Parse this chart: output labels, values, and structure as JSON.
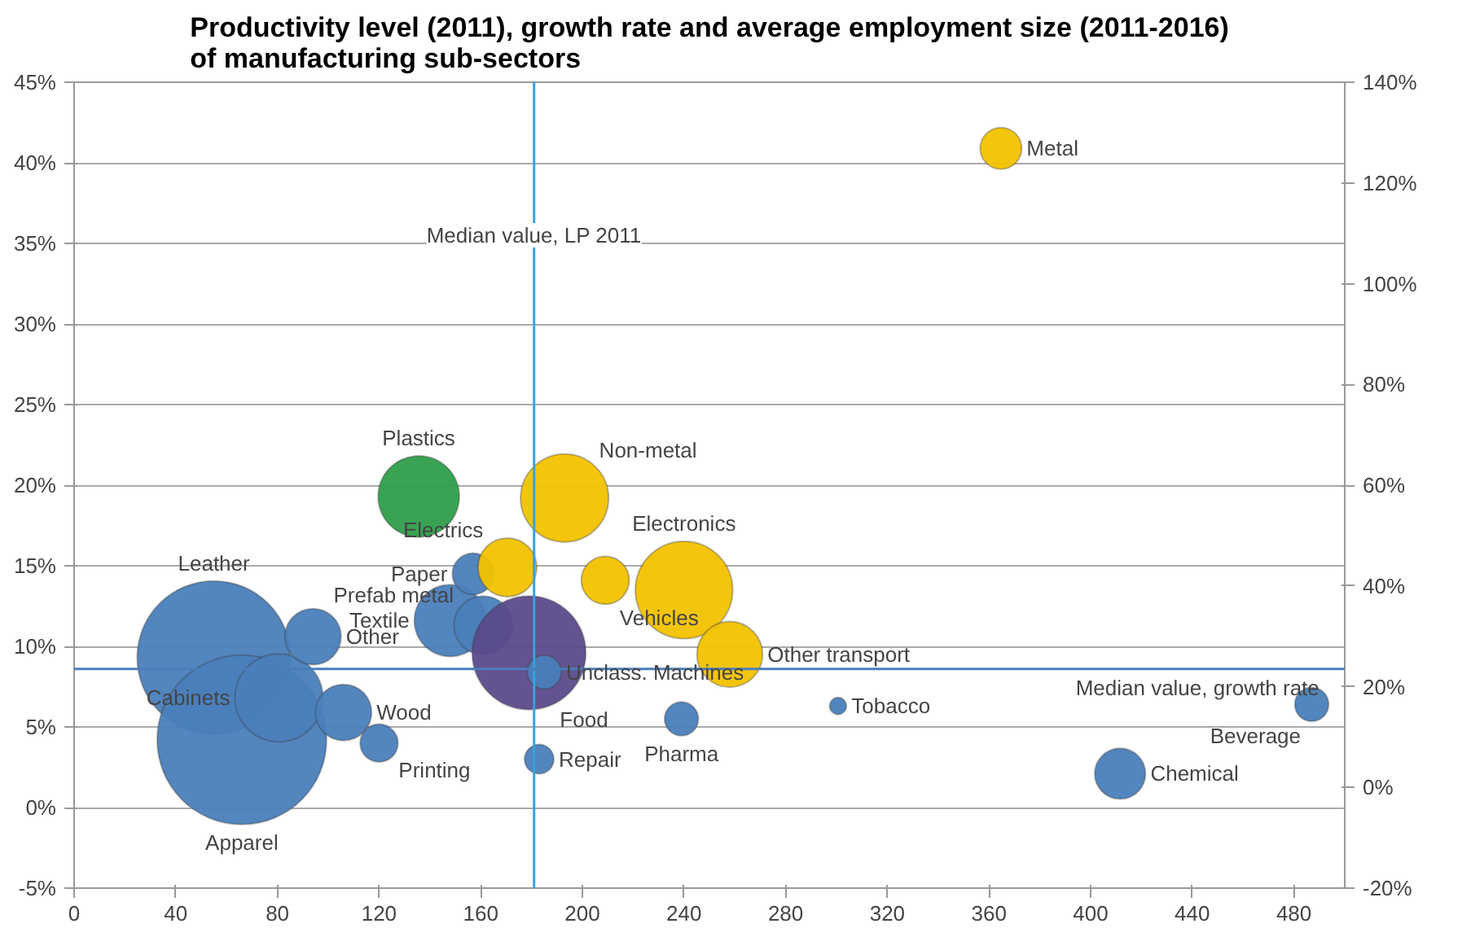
{
  "chart_data": {
    "type": "bubble",
    "title": "Productivity level (2011), growth rate and average employment size (2011-2016) of manufacturing sub-sectors",
    "xlim": [
      0,
      500
    ],
    "xticks": [
      0,
      40,
      80,
      120,
      160,
      200,
      240,
      280,
      320,
      360,
      400,
      440,
      480
    ],
    "ylim": [
      -5,
      45
    ],
    "yticks": [
      {
        "value": -5,
        "label": "-5%"
      },
      {
        "value": 0,
        "label": "0%"
      },
      {
        "value": 5,
        "label": "5%"
      },
      {
        "value": 10,
        "label": "10%"
      },
      {
        "value": 15,
        "label": "15%"
      },
      {
        "value": 20,
        "label": "20%"
      },
      {
        "value": 25,
        "label": "25%"
      },
      {
        "value": 30,
        "label": "30%"
      },
      {
        "value": 35,
        "label": "35%"
      },
      {
        "value": 40,
        "label": "40%"
      },
      {
        "value": 45,
        "label": "45%"
      }
    ],
    "y2lim": [
      -20,
      140
    ],
    "y2ticks": [
      {
        "value": -20,
        "label": "-20%"
      },
      {
        "value": 0,
        "label": "0%"
      },
      {
        "value": 20,
        "label": "20%"
      },
      {
        "value": 40,
        "label": "40%"
      },
      {
        "value": 60,
        "label": "60%"
      },
      {
        "value": 80,
        "label": "80%"
      },
      {
        "value": 100,
        "label": "100%"
      },
      {
        "value": 120,
        "label": "120%"
      },
      {
        "value": 140,
        "label": "140%"
      }
    ],
    "grid": "y",
    "ref_lines": [
      {
        "axis": "x",
        "value": 181,
        "label": "Median value, LP 2011",
        "color": "#3aa0dc"
      },
      {
        "axis": "y",
        "value": 8.6,
        "label": "Median value, growth rate",
        "color": "#4a7ebb"
      }
    ],
    "series": [
      {
        "name": "Leather",
        "color": "#4a7ebb",
        "x": [
          55
        ],
        "values": [
          9.3
        ],
        "sizes": [
          0.82
        ]
      },
      {
        "name": "Apparel",
        "color": "#4a7ebb",
        "x": [
          66
        ],
        "values": [
          4.2
        ],
        "sizes": [
          1
        ]
      },
      {
        "name": "Cabinets",
        "color": "#4a7ebb",
        "x": [
          80.6
        ],
        "values": [
          6.8
        ],
        "sizes": [
          0.27
        ]
      },
      {
        "name": "Other",
        "color": "#4a7ebb",
        "x": [
          94
        ],
        "values": [
          10.6
        ],
        "sizes": [
          0.11
        ]
      },
      {
        "name": "Wood",
        "color": "#4a7ebb",
        "x": [
          106
        ],
        "values": [
          5.9
        ],
        "sizes": [
          0.11
        ]
      },
      {
        "name": "Printing",
        "color": "#4a7ebb",
        "x": [
          120
        ],
        "values": [
          4.0
        ],
        "sizes": [
          0.05
        ]
      },
      {
        "name": "Plastics",
        "color": "#2e9e4a",
        "x": [
          135.6
        ],
        "values": [
          19.3
        ],
        "sizes": [
          0.23
        ]
      },
      {
        "name": "Textile",
        "color": "#4a7ebb",
        "x": [
          148
        ],
        "values": [
          11.6
        ],
        "sizes": [
          0.18
        ]
      },
      {
        "name": "Paper",
        "color": "#4a7ebb",
        "x": [
          157
        ],
        "values": [
          14.5
        ],
        "sizes": [
          0.06
        ]
      },
      {
        "name": "Prefab metal",
        "color": "#4a7ebb",
        "x": [
          161
        ],
        "values": [
          11.3
        ],
        "sizes": [
          0.12
        ]
      },
      {
        "name": "Food",
        "color": "#5b4a8a",
        "x": [
          179
        ],
        "values": [
          9.6
        ],
        "sizes": [
          0.45
        ]
      },
      {
        "name": "Unclass. Machines",
        "color": "#4a7ebb",
        "x": [
          185
        ],
        "values": [
          8.4
        ],
        "sizes": [
          0.04
        ]
      },
      {
        "name": "Repair",
        "color": "#4a7ebb",
        "x": [
          183
        ],
        "values": [
          3.0
        ],
        "sizes": [
          0.03
        ]
      },
      {
        "name": "Non-metal",
        "color": "#f2c200",
        "x": [
          193
        ],
        "values": [
          19.2
        ],
        "sizes": [
          0.27
        ]
      },
      {
        "name": "Electrics",
        "color": "#f2c200",
        "x": [
          170.5
        ],
        "values": [
          14.9
        ],
        "sizes": [
          0.12
        ]
      },
      {
        "name": "Vehicles",
        "color": "#f2c200",
        "x": [
          209
        ],
        "values": [
          14.1
        ],
        "sizes": [
          0.08
        ]
      },
      {
        "name": "Electronics",
        "color": "#f2c200",
        "x": [
          240
        ],
        "values": [
          13.5
        ],
        "sizes": [
          0.33
        ]
      },
      {
        "name": "Pharma",
        "color": "#4a7ebb",
        "x": [
          239
        ],
        "values": [
          5.5
        ],
        "sizes": [
          0.04
        ]
      },
      {
        "name": "Tobacco",
        "color": "#4a7ebb",
        "x": [
          300.6
        ],
        "values": [
          6.3
        ],
        "sizes": [
          0.01
        ]
      },
      {
        "name": "Other transport",
        "color": "#f2c200",
        "x": [
          258
        ],
        "values": [
          9.5
        ],
        "sizes": [
          0.15
        ]
      },
      {
        "name": "Chemical",
        "color": "#4a7ebb",
        "x": [
          411.6
        ],
        "values": [
          2.1
        ],
        "sizes": [
          0.09
        ]
      },
      {
        "name": "Beverage",
        "color": "#4a7ebb",
        "x": [
          487
        ],
        "values": [
          6.4
        ],
        "sizes": [
          0.04
        ]
      },
      {
        "name": "Metal",
        "color": "#f2c200",
        "x": [
          364.7
        ],
        "values": [
          40.9
        ],
        "sizes": [
          0.06
        ]
      }
    ]
  }
}
